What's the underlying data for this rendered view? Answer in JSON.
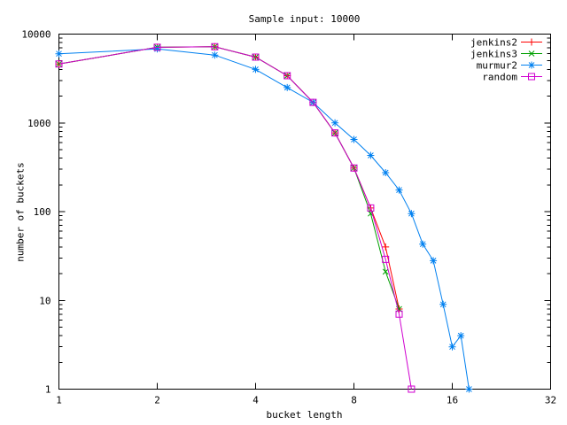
{
  "title": "Sample input: 10000",
  "axes": {
    "x": {
      "label": "bucket length",
      "scale": "log2",
      "tick_labels": [
        "1",
        "2",
        "4",
        "8",
        "16",
        "32"
      ]
    },
    "y": {
      "label": "number of buckets",
      "scale": "log10",
      "tick_labels": [
        "1",
        "10",
        "100",
        "1000",
        "10000"
      ]
    }
  },
  "legend": {
    "position": "top-right",
    "items": [
      "jenkins2",
      "jenkins3",
      "murmur2",
      "random"
    ]
  },
  "colors": {
    "jenkins2": "#ff0000",
    "jenkins3": "#00a000",
    "murmur2": "#0080f0",
    "random": "#d000d0",
    "axis": "#000000",
    "background": "#ffffff"
  },
  "chart_data": {
    "type": "line",
    "title": "Sample input: 10000",
    "xlabel": "bucket length",
    "ylabel": "number of buckets",
    "xscale": "log2",
    "yscale": "log10",
    "xlim": [
      1,
      32
    ],
    "ylim": [
      1,
      10000
    ],
    "grid": false,
    "legend_position": "top-right",
    "xticks": [
      1,
      2,
      4,
      8,
      16,
      32
    ],
    "yticks": [
      1,
      10,
      100,
      1000,
      10000
    ],
    "series": [
      {
        "name": "jenkins2",
        "color": "#ff0000",
        "marker": "plus",
        "x": [
          1,
          2,
          3,
          4,
          5,
          6,
          7,
          8,
          9,
          10,
          11
        ],
        "values": [
          4600,
          7100,
          7200,
          5500,
          3400,
          1700,
          770,
          310,
          110,
          40,
          8
        ]
      },
      {
        "name": "jenkins3",
        "color": "#00a000",
        "marker": "cross",
        "x": [
          1,
          2,
          3,
          4,
          5,
          6,
          7,
          8,
          9,
          10,
          11
        ],
        "values": [
          4600,
          7100,
          7200,
          5500,
          3400,
          1700,
          770,
          310,
          95,
          21,
          8
        ]
      },
      {
        "name": "murmur2",
        "color": "#0080f0",
        "marker": "asterisk",
        "x": [
          1,
          2,
          3,
          4,
          5,
          6,
          7,
          8,
          9,
          10,
          11,
          12,
          13,
          14,
          15,
          16,
          17,
          18
        ],
        "values": [
          6000,
          6800,
          5800,
          4000,
          2500,
          1700,
          1000,
          650,
          430,
          275,
          175,
          95,
          43,
          28,
          9,
          3,
          4,
          1
        ]
      },
      {
        "name": "random",
        "color": "#d000d0",
        "marker": "square",
        "x": [
          1,
          2,
          3,
          4,
          5,
          6,
          7,
          8,
          9,
          10,
          11,
          12
        ],
        "values": [
          4600,
          7100,
          7200,
          5500,
          3400,
          1700,
          770,
          310,
          110,
          29,
          7,
          1
        ]
      }
    ]
  }
}
